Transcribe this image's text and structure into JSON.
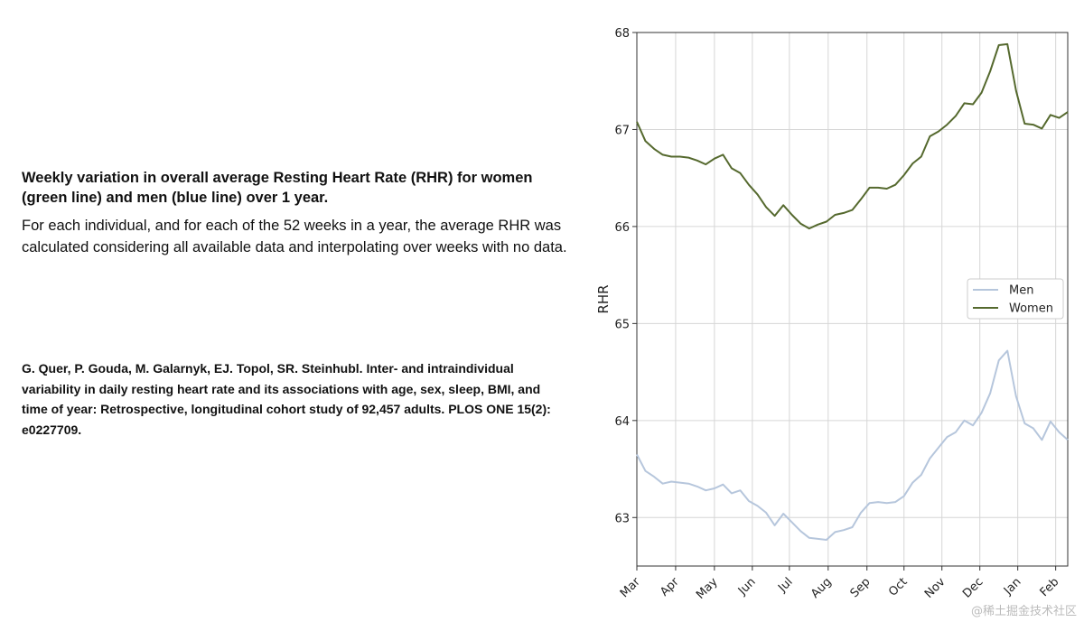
{
  "description": {
    "heading": "Weekly variation in overall average Resting Heart Rate (RHR) for women (green line) and men (blue line) over 1 year.",
    "body": "For each individual, and for each of the 52 weeks in a year, the average RHR was calculated considering all available data and interpolating over weeks with no data.",
    "citation": "G. Quer, P. Gouda, M. Galarnyk, EJ. Topol, SR. Steinhubl. Inter- and intraindividual variability in daily resting heart rate and its associations with age, sex, sleep, BMI, and time of year: Retrospective, longitudinal cohort study of 92,457 adults. PLOS ONE 15(2): e0227709."
  },
  "watermark": "@稀土掘金技术社区",
  "colors": {
    "men": "#b6c6dc",
    "women": "#55692e",
    "grid": "#d6d6d6",
    "axis": "#333333"
  },
  "chart_data": {
    "type": "line",
    "title": "",
    "xlabel": "",
    "ylabel": "RHR",
    "ylim": [
      62.5,
      68
    ],
    "yticks": [
      63,
      64,
      65,
      66,
      67,
      68
    ],
    "xlim": [
      0,
      50
    ],
    "month_ticks": [
      {
        "label": "Mar",
        "week": 0
      },
      {
        "label": "Apr",
        "week": 4.5
      },
      {
        "label": "May",
        "week": 9
      },
      {
        "label": "Jun",
        "week": 13.4
      },
      {
        "label": "Jul",
        "week": 17.7
      },
      {
        "label": "Aug",
        "week": 22.2
      },
      {
        "label": "Sep",
        "week": 26.7
      },
      {
        "label": "Oct",
        "week": 31
      },
      {
        "label": "Nov",
        "week": 35.4
      },
      {
        "label": "Dec",
        "week": 39.8
      },
      {
        "label": "Jan",
        "week": 44.2
      },
      {
        "label": "Feb",
        "week": 48.6
      }
    ],
    "legend": {
      "position": "center-right",
      "entries": [
        "Men",
        "Women"
      ]
    },
    "series": [
      {
        "name": "Women",
        "x": [
          0,
          1,
          2,
          3,
          4,
          5,
          6,
          7,
          8,
          9,
          10,
          11,
          12,
          13,
          14,
          15,
          16,
          17,
          18,
          19,
          20,
          21,
          22,
          23,
          24,
          25,
          26,
          27,
          28,
          29,
          30,
          31,
          32,
          33,
          34,
          35,
          36,
          37,
          38,
          39,
          40,
          41,
          42,
          43,
          44,
          45,
          46,
          47,
          48,
          49,
          50
        ],
        "values": [
          67.08,
          66.88,
          66.8,
          66.74,
          66.72,
          66.72,
          66.71,
          66.68,
          66.64,
          66.7,
          66.74,
          66.6,
          66.55,
          66.43,
          66.33,
          66.2,
          66.11,
          66.22,
          66.12,
          66.03,
          65.98,
          66.02,
          66.05,
          66.12,
          66.14,
          66.17,
          66.28,
          66.4,
          66.4,
          66.39,
          66.43,
          66.53,
          66.65,
          66.72,
          66.93,
          66.98,
          67.05,
          67.14,
          67.27,
          67.26,
          67.38,
          67.6,
          67.87,
          67.88,
          67.4,
          67.06,
          67.05,
          67.01,
          67.15,
          67.12,
          67.18
        ]
      },
      {
        "name": "Men",
        "x": [
          0,
          1,
          2,
          3,
          4,
          5,
          6,
          7,
          8,
          9,
          10,
          11,
          12,
          13,
          14,
          15,
          16,
          17,
          18,
          19,
          20,
          21,
          22,
          23,
          24,
          25,
          26,
          27,
          28,
          29,
          30,
          31,
          32,
          33,
          34,
          35,
          36,
          37,
          38,
          39,
          40,
          41,
          42,
          43,
          44,
          45,
          46,
          47,
          48,
          49,
          50
        ],
        "values": [
          63.65,
          63.48,
          63.42,
          63.35,
          63.37,
          63.36,
          63.35,
          63.32,
          63.28,
          63.3,
          63.34,
          63.25,
          63.28,
          63.17,
          63.12,
          63.05,
          62.92,
          63.04,
          62.95,
          62.86,
          62.79,
          62.78,
          62.77,
          62.85,
          62.87,
          62.9,
          63.05,
          63.15,
          63.16,
          63.15,
          63.16,
          63.22,
          63.36,
          63.44,
          63.61,
          63.72,
          63.83,
          63.88,
          64.0,
          63.95,
          64.08,
          64.28,
          64.62,
          64.72,
          64.25,
          63.97,
          63.92,
          63.8,
          63.99,
          63.88,
          63.8
        ]
      }
    ]
  }
}
